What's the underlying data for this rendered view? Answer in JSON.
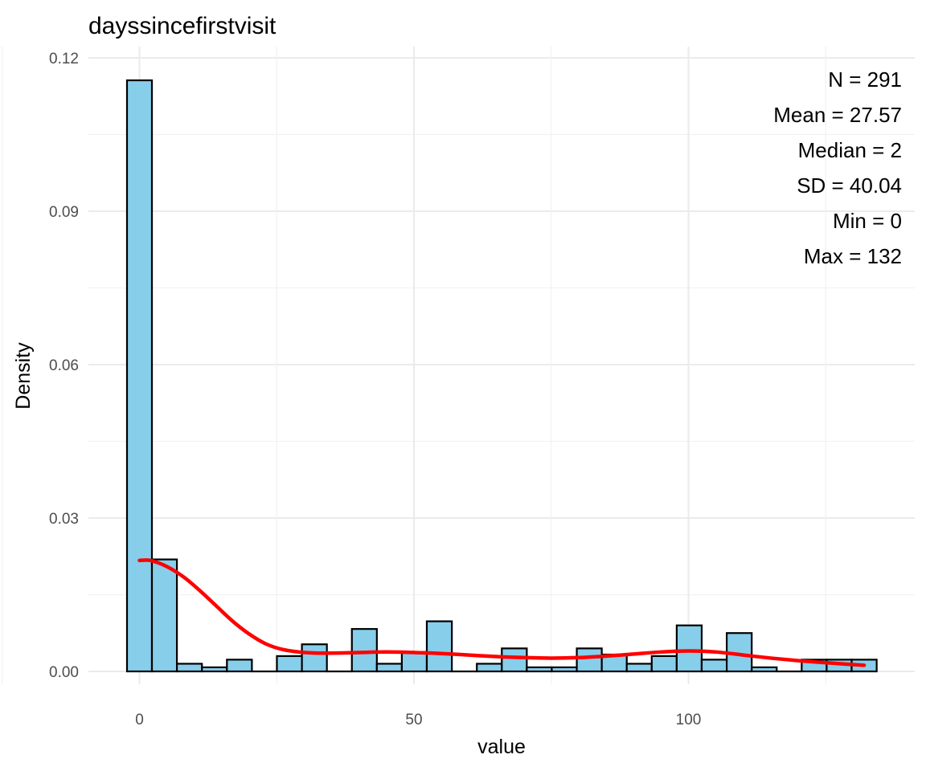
{
  "chart_data": {
    "type": "bar",
    "subtype": "histogram-with-density",
    "title": "dayssincefirstvisit",
    "xlabel": "value",
    "ylabel": "Density",
    "xlim": [
      -5,
      140
    ],
    "ylim": [
      0,
      0.12
    ],
    "x_ticks": [
      0,
      50,
      100
    ],
    "x_tick_labels": [
      "0",
      "50",
      "100"
    ],
    "y_ticks": [
      0,
      0.03,
      0.06,
      0.09,
      0.12
    ],
    "y_tick_labels": [
      "0.00",
      "0.03",
      "0.06",
      "0.09",
      "0.12"
    ],
    "grid": true,
    "bin_width": 4.55,
    "bins": [
      {
        "x0": -2.27,
        "x1": 2.27,
        "density": 0.1156
      },
      {
        "x0": 2.27,
        "x1": 6.82,
        "density": 0.0219
      },
      {
        "x0": 6.82,
        "x1": 11.38,
        "density": 0.0015
      },
      {
        "x0": 11.38,
        "x1": 15.93,
        "density": 0.0008
      },
      {
        "x0": 15.93,
        "x1": 20.48,
        "density": 0.0023
      },
      {
        "x0": 20.48,
        "x1": 25.03,
        "density": 0.0
      },
      {
        "x0": 25.03,
        "x1": 29.59,
        "density": 0.003
      },
      {
        "x0": 29.59,
        "x1": 34.14,
        "density": 0.0053
      },
      {
        "x0": 34.14,
        "x1": 38.69,
        "density": 0.0
      },
      {
        "x0": 38.69,
        "x1": 43.24,
        "density": 0.0083
      },
      {
        "x0": 43.24,
        "x1": 47.79,
        "density": 0.0015
      },
      {
        "x0": 47.79,
        "x1": 52.34,
        "density": 0.0038
      },
      {
        "x0": 52.34,
        "x1": 56.9,
        "density": 0.0098
      },
      {
        "x0": 56.9,
        "x1": 61.45,
        "density": 0.0
      },
      {
        "x0": 61.45,
        "x1": 66.0,
        "density": 0.0015
      },
      {
        "x0": 66.0,
        "x1": 70.55,
        "density": 0.0045
      },
      {
        "x0": 70.55,
        "x1": 75.1,
        "density": 0.0008
      },
      {
        "x0": 75.1,
        "x1": 79.66,
        "density": 0.0008
      },
      {
        "x0": 79.66,
        "x1": 84.21,
        "density": 0.0045
      },
      {
        "x0": 84.21,
        "x1": 88.76,
        "density": 0.0033
      },
      {
        "x0": 88.76,
        "x1": 93.31,
        "density": 0.0015
      },
      {
        "x0": 93.31,
        "x1": 97.86,
        "density": 0.003
      },
      {
        "x0": 97.86,
        "x1": 102.41,
        "density": 0.009
      },
      {
        "x0": 102.41,
        "x1": 106.97,
        "density": 0.0023
      },
      {
        "x0": 106.97,
        "x1": 111.52,
        "density": 0.0075
      },
      {
        "x0": 111.52,
        "x1": 116.07,
        "density": 0.0008
      },
      {
        "x0": 116.07,
        "x1": 120.62,
        "density": 0.0
      },
      {
        "x0": 120.62,
        "x1": 125.17,
        "density": 0.0023
      },
      {
        "x0": 125.17,
        "x1": 129.72,
        "density": 0.0023
      },
      {
        "x0": 129.72,
        "x1": 134.28,
        "density": 0.0023
      }
    ],
    "density_curve": {
      "x": [
        0,
        2,
        5,
        8,
        11,
        14,
        17,
        20,
        23,
        26,
        29,
        32,
        36,
        40,
        45,
        50,
        55,
        60,
        65,
        70,
        75,
        80,
        85,
        90,
        95,
        100,
        105,
        110,
        115,
        120,
        125,
        132
      ],
      "y": [
        0.0217,
        0.0217,
        0.0205,
        0.0185,
        0.0158,
        0.0128,
        0.0098,
        0.0073,
        0.0054,
        0.0043,
        0.0038,
        0.0036,
        0.0036,
        0.0037,
        0.0038,
        0.0037,
        0.0035,
        0.0032,
        0.0029,
        0.0027,
        0.0026,
        0.0027,
        0.003,
        0.0034,
        0.0038,
        0.004,
        0.0038,
        0.0032,
        0.0026,
        0.0021,
        0.0017,
        0.0012
      ]
    },
    "annotations": [
      "N = 291",
      "Mean = 27.57",
      "Median = 2",
      "SD = 40.04",
      "Min = 0",
      "Max = 132"
    ],
    "annotation_placement": "top-right",
    "colors": {
      "bar_fill": "#87CEEB",
      "bar_outline": "#000000",
      "density_line": "#FF0000",
      "grid": "#EBEBEB",
      "background": "#FFFFFF"
    }
  }
}
